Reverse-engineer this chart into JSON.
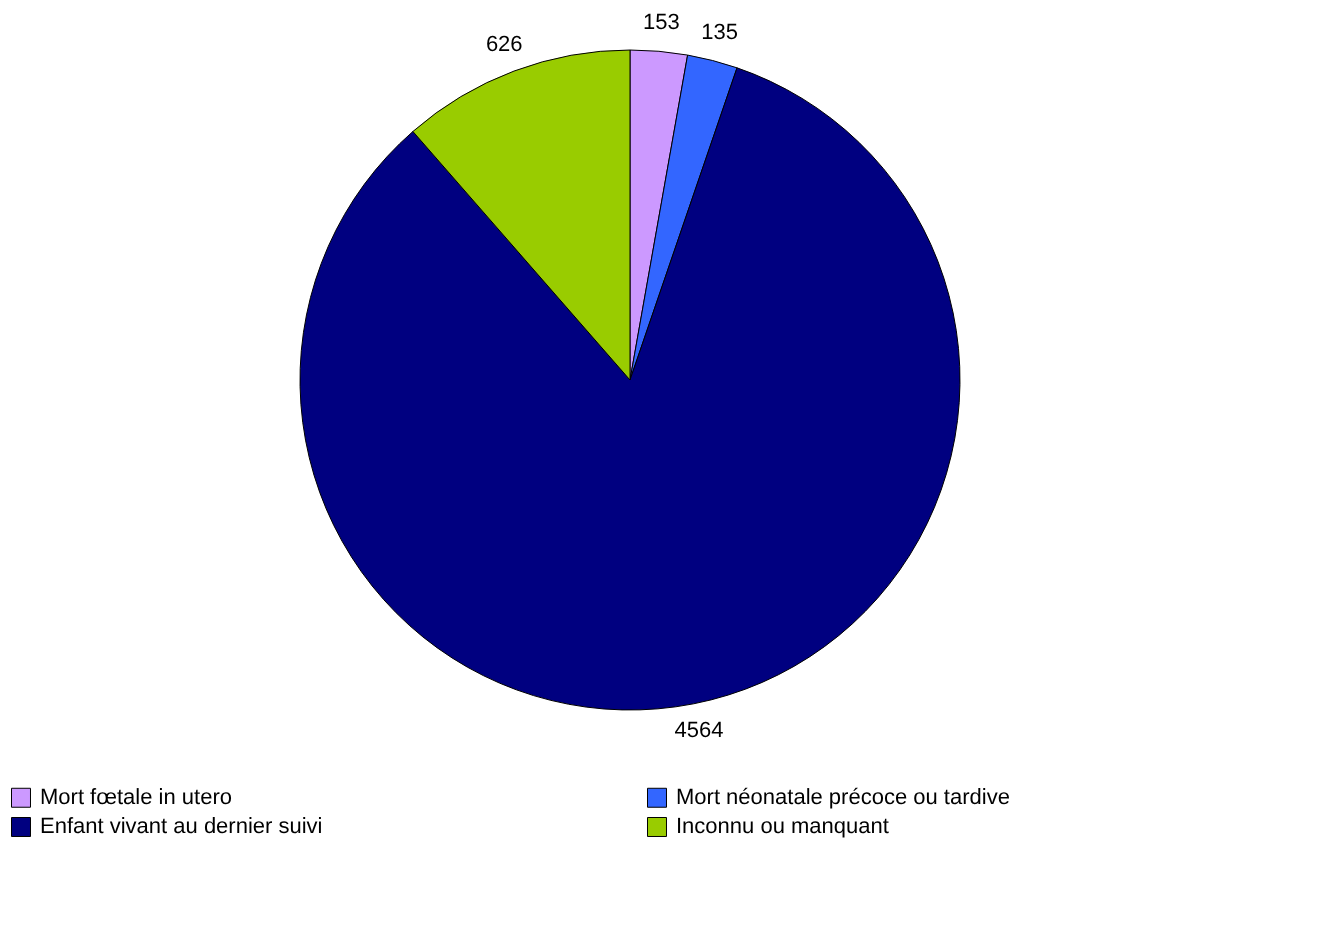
{
  "chart_data": {
    "type": "pie",
    "categories": [
      "Mort fœtale in utero",
      "Mort néonatale précoce ou tardive",
      "Enfant vivant au dernier suivi",
      "Inconnu ou manquant"
    ],
    "values": [
      153,
      135,
      4564,
      626
    ],
    "colors": [
      "#cc99ff",
      "#3366ff",
      "#000080",
      "#99cc00"
    ],
    "data_labels": true,
    "legend": "bottom"
  }
}
